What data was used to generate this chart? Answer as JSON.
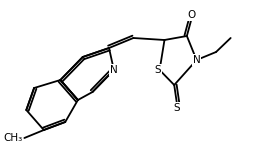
{
  "bg_color": "#ffffff",
  "line_color": "#000000",
  "line_width": 1.3,
  "font_size": 7.5,
  "atoms": {
    "N_label": "N",
    "S1_label": "S",
    "S2_label": "S",
    "O_label": "O",
    "N_quin_label": "N",
    "CH3_label": "CH₃",
    "Et_label": ""
  }
}
